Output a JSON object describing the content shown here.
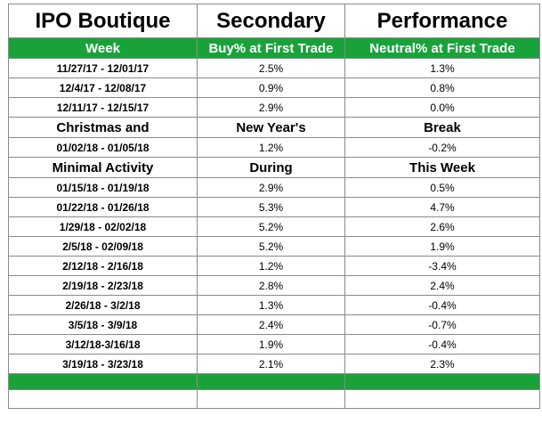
{
  "title_row": [
    "IPO Boutique",
    "Secondary",
    "Performance"
  ],
  "header_row": [
    "Week",
    "Buy% at First Trade",
    "Neutral% at First Trade"
  ],
  "rows": [
    {
      "type": "data",
      "week": "11/27/17 - 12/01/17",
      "buy": "2.5%",
      "neutral": "1.3%"
    },
    {
      "type": "data",
      "week": "12/4/17 - 12/08/17",
      "buy": "0.9%",
      "neutral": "0.8%"
    },
    {
      "type": "data",
      "week": "12/11/17 - 12/15/17",
      "buy": "2.9%",
      "neutral": "0.0%"
    },
    {
      "type": "note",
      "week": "Christmas and",
      "buy": "New Year's",
      "neutral": "Break"
    },
    {
      "type": "data",
      "week": "01/02/18 - 01/05/18",
      "buy": "1.2%",
      "neutral": "-0.2%"
    },
    {
      "type": "note",
      "week": "Minimal Activity",
      "buy": "During",
      "neutral": "This Week"
    },
    {
      "type": "data",
      "week": "01/15/18 - 01/19/18",
      "buy": "2.9%",
      "neutral": "0.5%"
    },
    {
      "type": "data",
      "week": "01/22/18 - 01/26/18",
      "buy": "5.3%",
      "neutral": "4.7%"
    },
    {
      "type": "data",
      "week": "1/29/18 - 02/02/18",
      "buy": "5.2%",
      "neutral": "2.6%"
    },
    {
      "type": "data",
      "week": "2/5/18 - 02/09/18",
      "buy": "5.2%",
      "neutral": "1.9%"
    },
    {
      "type": "data",
      "week": "2/12/18 - 2/16/18",
      "buy": "1.2%",
      "neutral": "-3.4%"
    },
    {
      "type": "data",
      "week": "2/19/18 - 2/23/18",
      "buy": "2.8%",
      "neutral": "2.4%"
    },
    {
      "type": "data",
      "week": "2/26/18 - 3/2/18",
      "buy": "1.3%",
      "neutral": "-0.4%"
    },
    {
      "type": "data",
      "week": "3/5/18 - 3/9/18",
      "buy": "2.4%",
      "neutral": "-0.7%"
    },
    {
      "type": "data",
      "week": "3/12/18-3/16/18",
      "buy": "1.9%",
      "neutral": "-0.4%"
    },
    {
      "type": "data",
      "week": "3/19/18 - 3/23/18",
      "buy": "2.1%",
      "neutral": "2.3%"
    },
    {
      "type": "green"
    },
    {
      "type": "blank"
    }
  ],
  "colors": {
    "header_green": "#19a23a",
    "header_text": "#ffffff",
    "border": "#8a8a8a"
  }
}
